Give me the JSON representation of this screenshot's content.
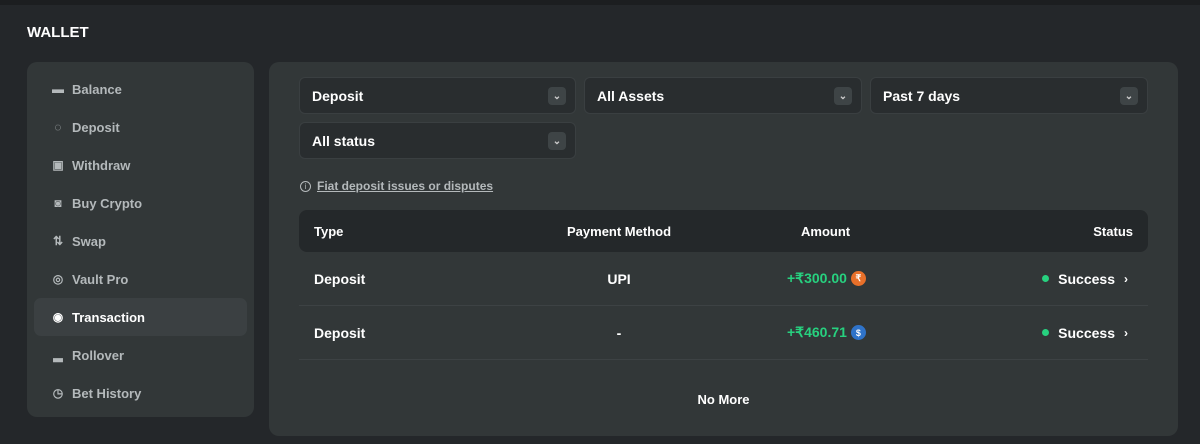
{
  "title": "WALLET",
  "sidebar": {
    "items": [
      {
        "label": "Balance",
        "icon": "wallet-icon",
        "glyph": "▬"
      },
      {
        "label": "Deposit",
        "icon": "piggy-bank-icon",
        "glyph": "◌"
      },
      {
        "label": "Withdraw",
        "icon": "withdraw-icon",
        "glyph": "▣"
      },
      {
        "label": "Buy Crypto",
        "icon": "cash-icon",
        "glyph": "◙"
      },
      {
        "label": "Swap",
        "icon": "swap-icon",
        "glyph": "⇅"
      },
      {
        "label": "Vault Pro",
        "icon": "vault-icon",
        "glyph": "◎"
      },
      {
        "label": "Transaction",
        "icon": "transaction-icon",
        "glyph": "◉"
      },
      {
        "label": "Rollover",
        "icon": "rollover-icon",
        "glyph": "▂"
      },
      {
        "label": "Bet History",
        "icon": "clock-icon",
        "glyph": "◷"
      }
    ],
    "active": "Transaction"
  },
  "filters": {
    "type": "Deposit",
    "asset": "All Assets",
    "period": "Past 7 days",
    "status": "All status"
  },
  "note": {
    "icon": "info-icon",
    "link": "Fiat deposit issues or disputes"
  },
  "table": {
    "headers": [
      "Type",
      "Payment Method",
      "Amount",
      "Status"
    ],
    "rows": [
      {
        "type": "Deposit",
        "method": "UPI",
        "amount": "+₹300.00",
        "coin_icon": "inr-coin-icon",
        "coin_color": "#e8702a",
        "coin_glyph": "₹",
        "status": "Success"
      },
      {
        "type": "Deposit",
        "method": "-",
        "amount": "+₹460.71",
        "coin_icon": "usdc-coin-icon",
        "coin_color": "#2f73c9",
        "coin_glyph": "$",
        "status": "Success"
      }
    ],
    "footer": "No More"
  },
  "colors": {
    "success": "#27d17f",
    "panel": "#323738",
    "background": "#24272a"
  }
}
